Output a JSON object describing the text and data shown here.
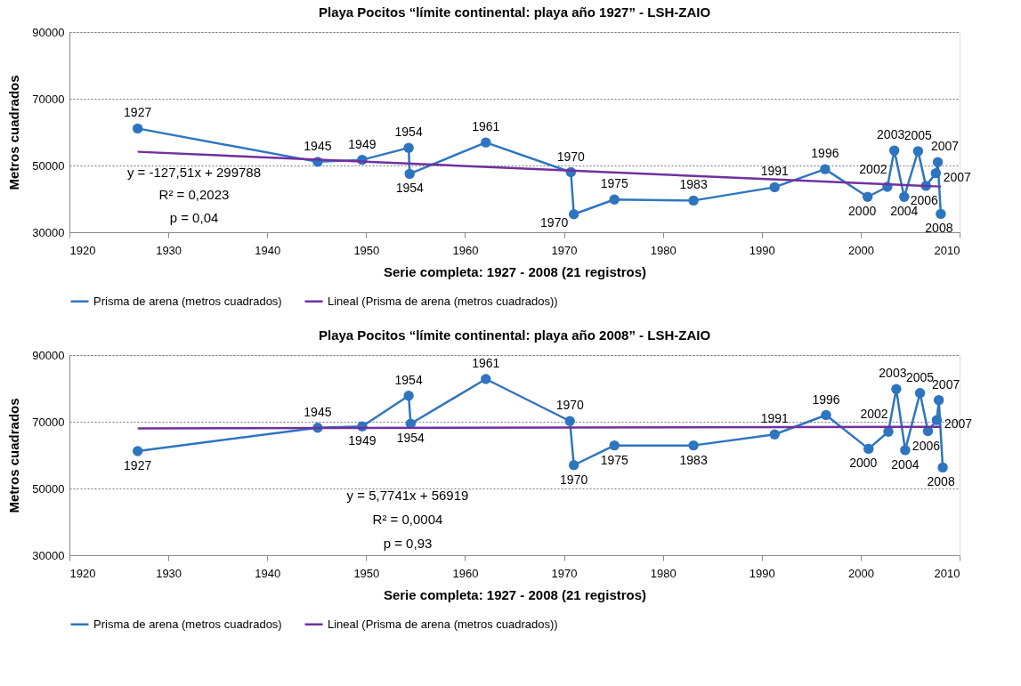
{
  "chart_data": [
    {
      "type": "line",
      "title": "Playa Pocitos “límite continental: playa año 1927”  -  LSH-ZAIO",
      "xlabel": "Serie completa: 1927 - 2008 (21 registros)",
      "ylabel": "Metros cuadrados",
      "xlim": [
        1920,
        2010
      ],
      "xticks": [
        1920,
        1930,
        1940,
        1950,
        1960,
        1970,
        1980,
        1990,
        2000,
        2010
      ],
      "ylim": [
        30000,
        90000
      ],
      "yticks": [
        30000,
        50000,
        70000,
        90000
      ],
      "grid": "y",
      "legend": "bottom",
      "series": [
        {
          "name": "Prisma de arena (metros cuadrados)",
          "color": "#2e75c0",
          "marker": "circle",
          "x": [
            1926.9,
            1945.1,
            1949.6,
            1954.3,
            1954.4,
            1962.1,
            1970.7,
            1971.0,
            1975.1,
            1983.1,
            1991.3,
            1996.4,
            2000.7,
            2002.7,
            2003.4,
            2004.4,
            2005.8,
            2006.6,
            2007.6,
            2007.8,
            2008.1
          ],
          "values": [
            61100,
            51100,
            51700,
            55300,
            47500,
            56900,
            48000,
            35400,
            39800,
            39500,
            43500,
            48900,
            40600,
            43600,
            54500,
            40600,
            54300,
            43900,
            47700,
            51000,
            35500
          ]
        },
        {
          "name": "Lineal (Prisma de arena (metros cuadrados))",
          "color": "#7030a0",
          "marker": "none",
          "x": [
            1927,
            2008
          ],
          "values": [
            54100,
            43700
          ]
        }
      ],
      "annotations": [
        {
          "text": "1927",
          "x": 1926.9,
          "y": 61100
        },
        {
          "text": "1945",
          "x": 1945.1,
          "y": 51100
        },
        {
          "text": "1949",
          "x": 1949.6,
          "y": 51700
        },
        {
          "text": "1954",
          "x": 1954.3,
          "y": 55300
        },
        {
          "text": "1954",
          "x": 1954.4,
          "y": 47500
        },
        {
          "text": "1961",
          "x": 1962.1,
          "y": 56900
        },
        {
          "text": "1970",
          "x": 1970.7,
          "y": 48000
        },
        {
          "text": "1970",
          "x": 1971.0,
          "y": 35400
        },
        {
          "text": "1975",
          "x": 1975.1,
          "y": 39800
        },
        {
          "text": "1983",
          "x": 1983.1,
          "y": 39500
        },
        {
          "text": "1991",
          "x": 1991.3,
          "y": 43500
        },
        {
          "text": "1996",
          "x": 1996.4,
          "y": 48900
        },
        {
          "text": "2000",
          "x": 2000.7,
          "y": 40600
        },
        {
          "text": "2002",
          "x": 2002.7,
          "y": 43600
        },
        {
          "text": "2003",
          "x": 2003.4,
          "y": 54500
        },
        {
          "text": "2004",
          "x": 2004.4,
          "y": 40600
        },
        {
          "text": "2005",
          "x": 2005.8,
          "y": 54300
        },
        {
          "text": "2006",
          "x": 2006.6,
          "y": 43900
        },
        {
          "text": "2007",
          "x": 2007.6,
          "y": 47700
        },
        {
          "text": "2007",
          "x": 2007.8,
          "y": 51000
        },
        {
          "text": "2008",
          "x": 2008.1,
          "y": 35500
        },
        "y = -127,51x + 299788",
        "R² = 0,2023",
        "p = 0,04"
      ]
    },
    {
      "type": "line",
      "title": "Playa Pocitos “límite continental: playa año 2008”  -  LSH-ZAIO",
      "xlabel": "Serie completa: 1927 - 2008 (21 registros)",
      "ylabel": "Metros cuadrados",
      "xlim": [
        1920,
        2010
      ],
      "xticks": [
        1920,
        1930,
        1940,
        1950,
        1960,
        1970,
        1980,
        1990,
        2000,
        2010
      ],
      "ylim": [
        30000,
        90000
      ],
      "yticks": [
        30000,
        50000,
        70000,
        90000
      ],
      "grid": "y",
      "legend": "bottom",
      "series": [
        {
          "name": "Prisma de arena (metros cuadrados)",
          "color": "#2e75c0",
          "marker": "circle",
          "x": [
            1926.9,
            1945.1,
            1949.6,
            1954.3,
            1954.5,
            1962.1,
            1970.6,
            1971.0,
            1975.1,
            1983.1,
            1991.3,
            1996.5,
            2000.8,
            2002.8,
            2003.6,
            2004.5,
            2006.0,
            2006.8,
            2007.7,
            2007.9,
            2008.3
          ],
          "values": [
            61200,
            68200,
            68600,
            77800,
            69400,
            82800,
            70200,
            57000,
            62900,
            62900,
            66200,
            72000,
            61900,
            67000,
            79800,
            61500,
            78600,
            67200,
            70500,
            76500,
            56300
          ]
        },
        {
          "name": "Lineal (Prisma de arena (metros cuadrados))",
          "color": "#7030a0",
          "marker": "none",
          "x": [
            1927,
            2008
          ],
          "values": [
            68000,
            68500
          ]
        }
      ],
      "annotations": [
        {
          "text": "1927",
          "x": 1926.9,
          "y": 61200
        },
        {
          "text": "1945",
          "x": 1945.1,
          "y": 68200
        },
        {
          "text": "1949",
          "x": 1949.6,
          "y": 68600
        },
        {
          "text": "1954",
          "x": 1954.3,
          "y": 77800
        },
        {
          "text": "1954",
          "x": 1954.5,
          "y": 69400
        },
        {
          "text": "1961",
          "x": 1962.1,
          "y": 82800
        },
        {
          "text": "1970",
          "x": 1970.6,
          "y": 70200
        },
        {
          "text": "1970",
          "x": 1971.0,
          "y": 57000
        },
        {
          "text": "1975",
          "x": 1975.1,
          "y": 62900
        },
        {
          "text": "1983",
          "x": 1983.1,
          "y": 62900
        },
        {
          "text": "1991",
          "x": 1991.3,
          "y": 66200
        },
        {
          "text": "1996",
          "x": 1996.5,
          "y": 72000
        },
        {
          "text": "2000",
          "x": 2000.8,
          "y": 61900
        },
        {
          "text": "2002",
          "x": 2002.8,
          "y": 67000
        },
        {
          "text": "2003",
          "x": 2003.6,
          "y": 79800
        },
        {
          "text": "2004",
          "x": 2004.5,
          "y": 61500
        },
        {
          "text": "2005",
          "x": 2006.0,
          "y": 78600
        },
        {
          "text": "2006",
          "x": 2006.8,
          "y": 67200
        },
        {
          "text": "2007",
          "x": 2007.7,
          "y": 70500
        },
        {
          "text": "2007",
          "x": 2007.9,
          "y": 76500
        },
        {
          "text": "2008",
          "x": 2008.3,
          "y": 56300
        },
        "y = 5,7741x + 56919",
        "R² = 0,0004",
        "p = 0,93"
      ]
    }
  ]
}
